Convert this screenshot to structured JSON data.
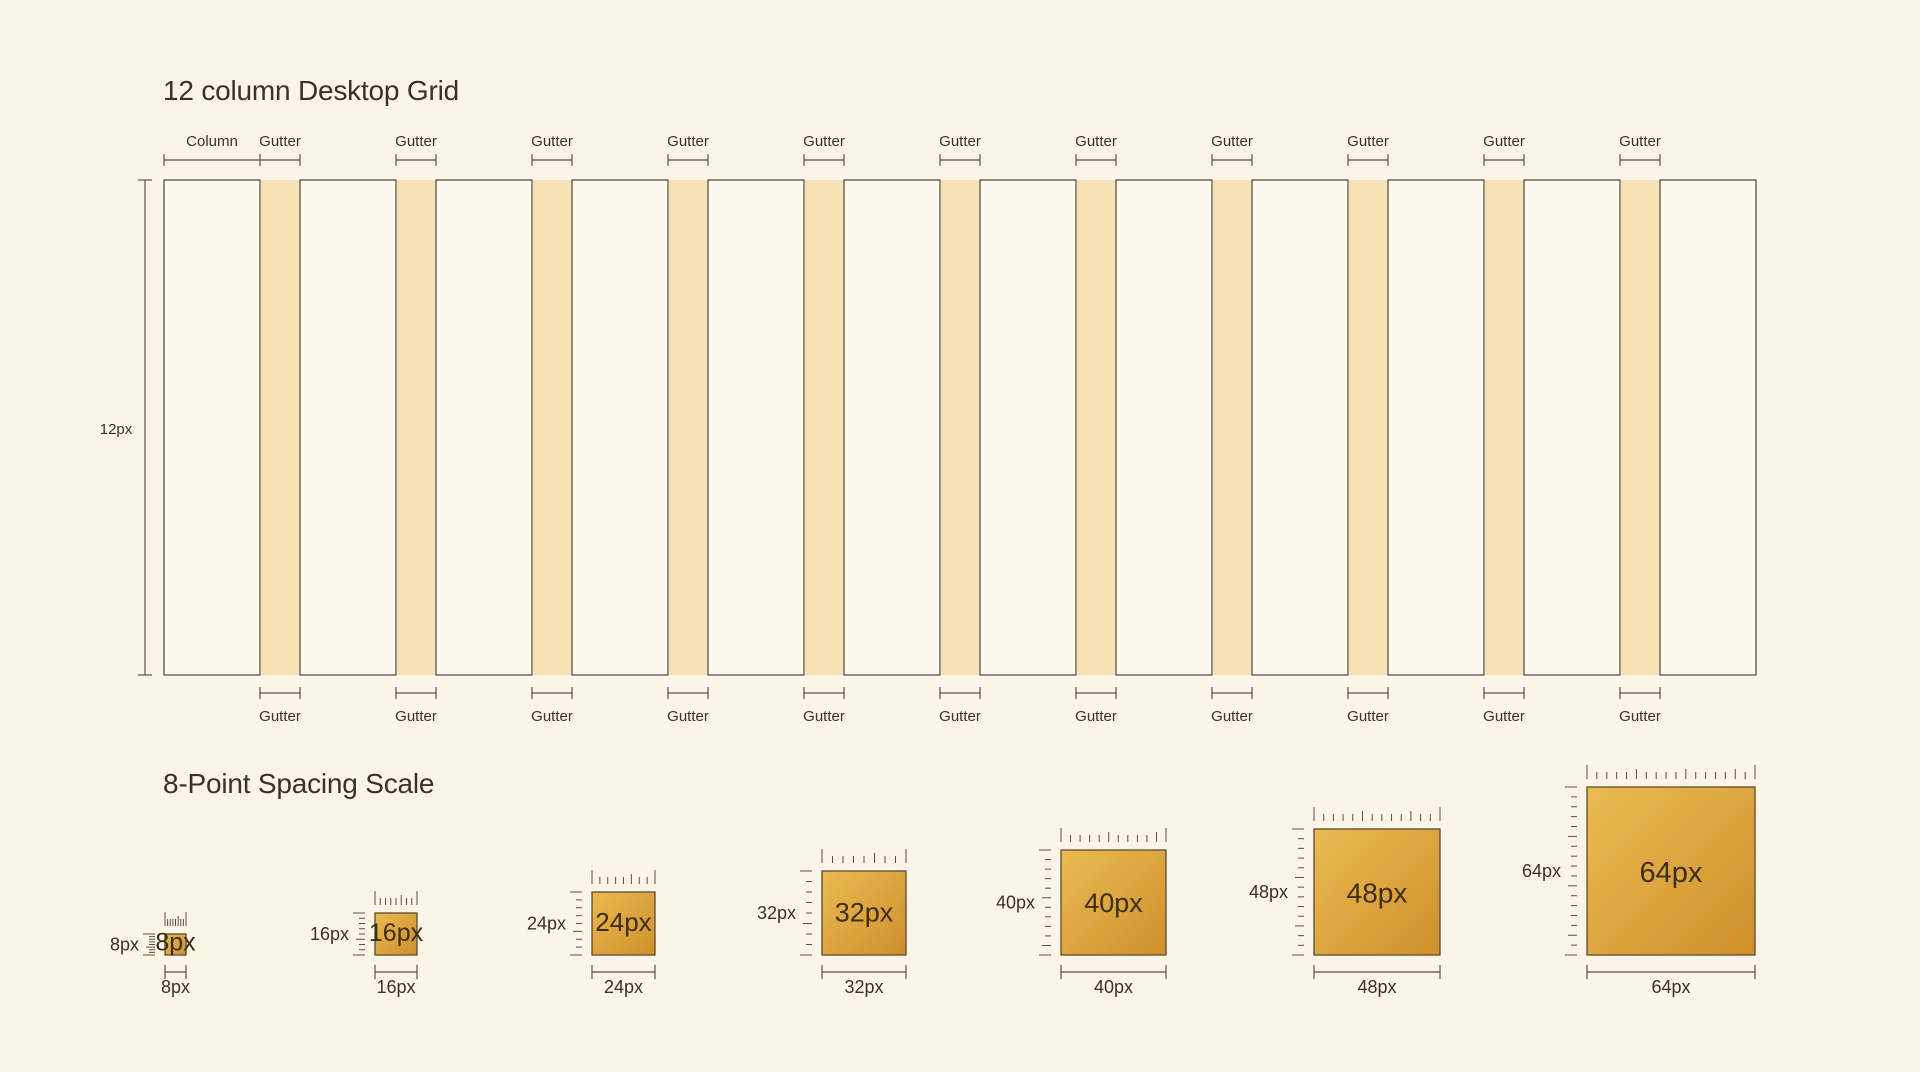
{
  "grid": {
    "title": "12 column Desktop Grid",
    "column_count": 12,
    "column_label": "Column",
    "gutter_label": "Gutter",
    "height_label": "12px",
    "colors": {
      "gutter_fill": "#f7e1b4",
      "column_fill": "#fdf8ee",
      "line": "#5a4f44"
    }
  },
  "scale": {
    "title": "8-Point Spacing Scale",
    "items": [
      {
        "value": 8,
        "label": "8px"
      },
      {
        "value": 16,
        "label": "16px"
      },
      {
        "value": 24,
        "label": "24px"
      },
      {
        "value": 32,
        "label": "32px"
      },
      {
        "value": 40,
        "label": "40px"
      },
      {
        "value": 48,
        "label": "48px"
      },
      {
        "value": 64,
        "label": "64px"
      }
    ],
    "colors": {
      "box_light": "#ebbb52",
      "box_dark": "#cf8f2b",
      "box_border": "#5a4a30",
      "ruler": "#5a4f44"
    }
  }
}
